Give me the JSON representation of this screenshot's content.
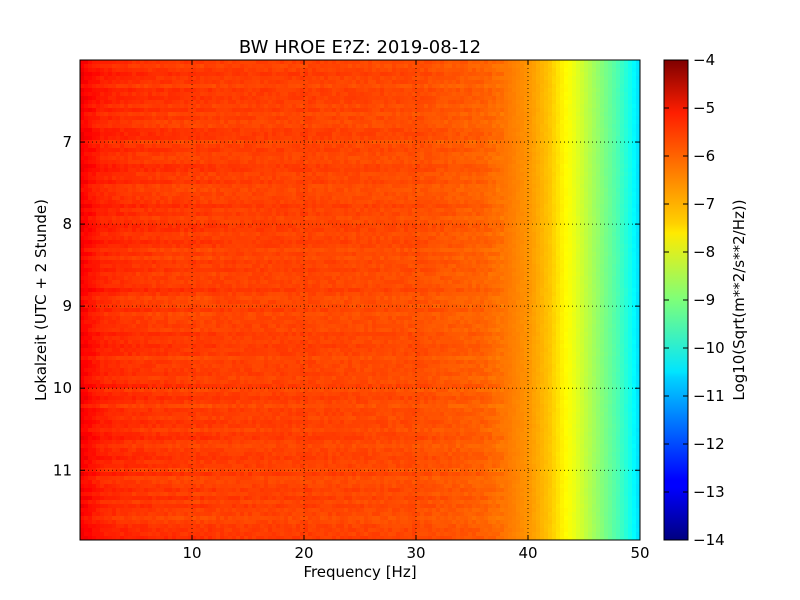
{
  "chart_data": {
    "type": "heatmap",
    "title": "BW HROE E?Z: 2019-08-12",
    "xlabel": "Frequency [Hz]",
    "ylabel": "Lokalzeit (UTC + 2 Stunde)",
    "xlim": [
      0,
      50
    ],
    "ylim": [
      11.85,
      6.0
    ],
    "x_ticks": [
      10,
      20,
      30,
      40,
      50
    ],
    "x_tick_labels": [
      "10",
      "20",
      "30",
      "40",
      "50"
    ],
    "y_ticks": [
      7,
      8,
      9,
      10,
      11
    ],
    "y_tick_labels": [
      "7",
      "8",
      "9",
      "10",
      "11"
    ],
    "y_inverted": true,
    "grid": true,
    "colormap": "jet",
    "colorbar": {
      "label": "Log10(Sqrt(m**2/s**2/Hz))",
      "range": [
        -14,
        -4
      ],
      "ticks": [
        -4,
        -5,
        -6,
        -7,
        -8,
        -9,
        -10,
        -11,
        -12,
        -13,
        -14
      ],
      "tick_labels": [
        "−4",
        "−5",
        "−6",
        "−7",
        "−8",
        "−9",
        "−10",
        "−11",
        "−12",
        "−13",
        "−14"
      ]
    },
    "frequency_profile": {
      "frequency_hz": [
        0,
        1,
        2,
        5,
        10,
        20,
        30,
        36,
        38,
        40,
        42,
        43,
        44,
        45,
        46,
        47,
        48,
        49,
        50
      ],
      "level_log10": [
        -5.2,
        -5.4,
        -5.6,
        -5.75,
        -5.85,
        -5.9,
        -6.0,
        -6.2,
        -6.4,
        -6.7,
        -7.2,
        -7.6,
        -7.9,
        -8.3,
        -8.7,
        -9.1,
        -9.5,
        -10.0,
        -10.6
      ]
    }
  }
}
